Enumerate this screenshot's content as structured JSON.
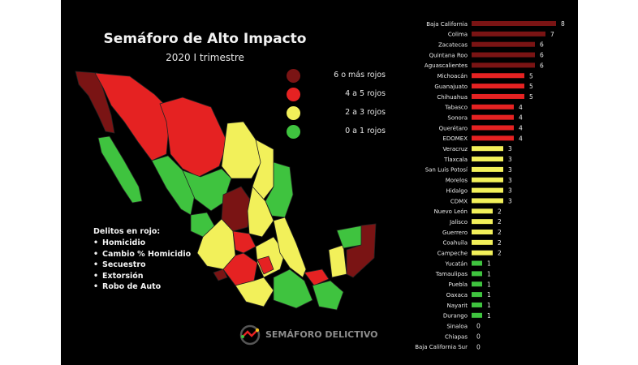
{
  "title": "Semáforo de Alto Impacto",
  "subtitle": "2020 I trimestre",
  "colors": {
    "dark_red": "#7a1414",
    "red": "#e52222",
    "yellow": "#f2f05a",
    "green": "#3fc33f",
    "background": "#000000"
  },
  "legend": [
    {
      "label": "6 o más rojos",
      "color_key": "dark_red"
    },
    {
      "label": "4 a 5 rojos",
      "color_key": "red"
    },
    {
      "label": "2 a 3  rojos",
      "color_key": "yellow"
    },
    {
      "label": "0 a 1 rojos",
      "color_key": "green"
    }
  ],
  "crimes": {
    "title": "Delitos en rojo:",
    "items": [
      "Homicidio",
      "Cambio % Homicidio",
      "Secuestro",
      "Extorsión",
      "Robo de Auto"
    ]
  },
  "logo": {
    "text": "SEMÁFORO DELICTIVO",
    "icon": "semaforo-logo-icon"
  },
  "chart_data": {
    "type": "bar",
    "orientation": "horizontal",
    "xlim": [
      0,
      8
    ],
    "categories": [
      "Baja California",
      "Colima",
      "Zacatecas",
      "Quintana Roo",
      "Aguascalientes",
      "Michoacán",
      "Guanajuato",
      "Chihuahua",
      "Tabasco",
      "Sonora",
      "Querétaro",
      "EDOMEX",
      "Veracruz",
      "Tlaxcala",
      "San Luis Potosí",
      "Morelos",
      "Hidalgo",
      "CDMX",
      "Nuevo León",
      "Jalisco",
      "Guerrero",
      "Coahuila",
      "Campeche",
      "Yucatán",
      "Tamaulipas",
      "Puebla",
      "Oaxaca",
      "Nayarit",
      "Durango",
      "Sinaloa",
      "Chiapas",
      "Baja California Sur"
    ],
    "values": [
      8,
      7,
      6,
      6,
      6,
      5,
      5,
      5,
      4,
      4,
      4,
      4,
      3,
      3,
      3,
      3,
      3,
      3,
      2,
      2,
      2,
      2,
      2,
      1,
      1,
      1,
      1,
      1,
      1,
      0,
      0,
      0
    ]
  }
}
